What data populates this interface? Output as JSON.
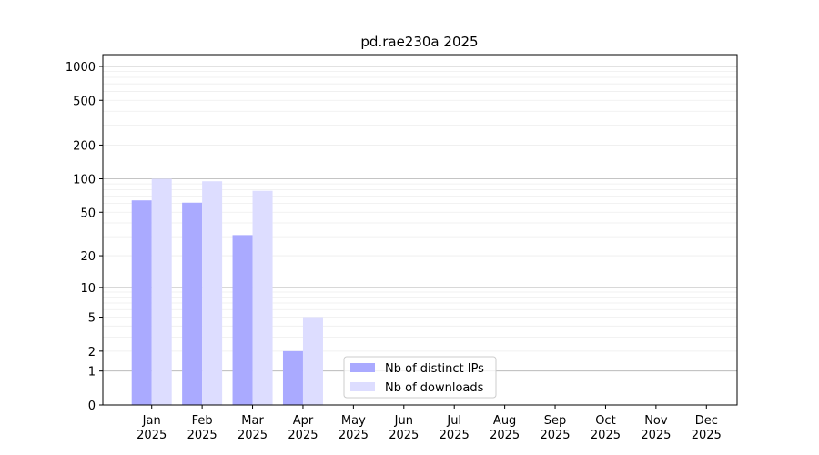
{
  "chart_data": {
    "type": "bar",
    "title": "pd.rae230a 2025",
    "categories": [
      "Jan\n2025",
      "Feb\n2025",
      "Mar\n2025",
      "Apr\n2025",
      "May\n2025",
      "Jun\n2025",
      "Jul\n2025",
      "Aug\n2025",
      "Sep\n2025",
      "Oct\n2025",
      "Nov\n2025",
      "Dec\n2025"
    ],
    "series": [
      {
        "name": "Nb of distinct IPs",
        "color": "#aaaaff",
        "values": [
          64,
          61,
          31,
          2,
          0,
          0,
          0,
          0,
          0,
          0,
          0,
          0
        ]
      },
      {
        "name": "Nb of downloads",
        "color": "#ddddff",
        "values": [
          100,
          95,
          78,
          5,
          0,
          0,
          0,
          0,
          0,
          0,
          0,
          0
        ]
      }
    ],
    "yscale": "log1p",
    "ylim": [
      0,
      1273
    ],
    "yticks": [
      0,
      1,
      2,
      5,
      10,
      20,
      50,
      100,
      200,
      500,
      1000
    ],
    "grid_major": [
      1,
      10,
      100,
      1000
    ],
    "grid_minor": [
      2,
      3,
      4,
      5,
      6,
      7,
      8,
      9,
      20,
      30,
      40,
      50,
      60,
      70,
      80,
      90,
      200,
      300,
      400,
      500,
      600,
      700,
      800,
      900
    ],
    "legend": "lower center"
  }
}
